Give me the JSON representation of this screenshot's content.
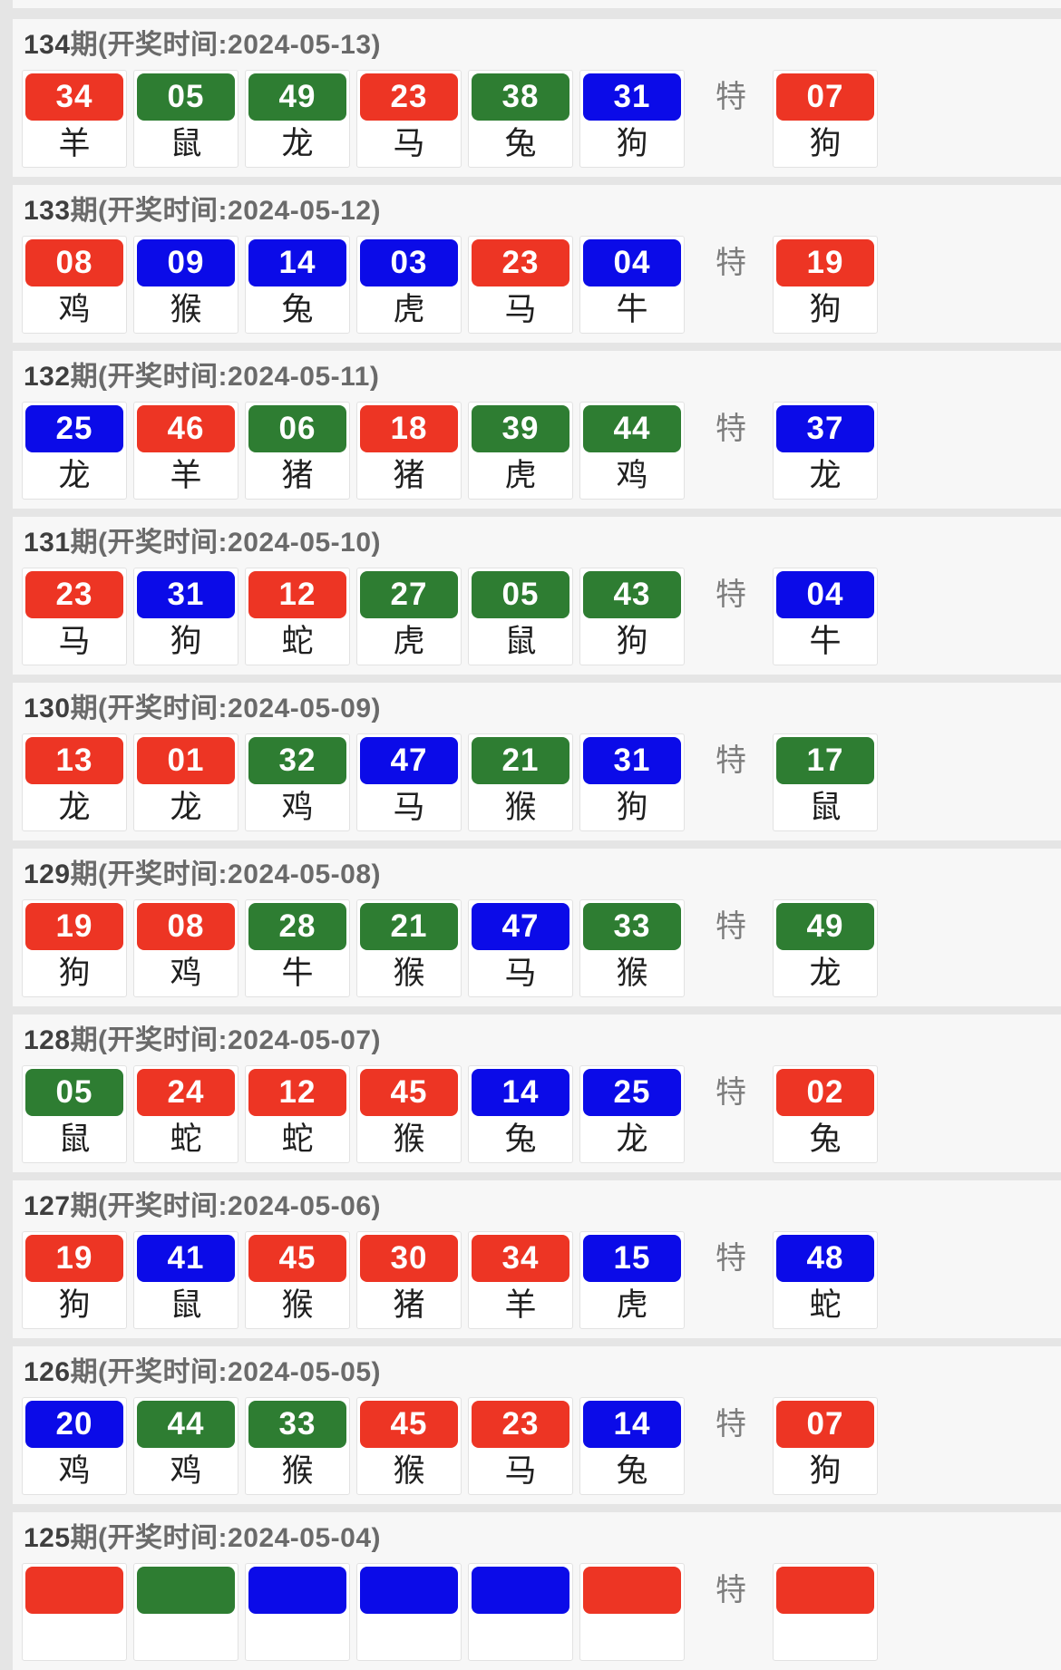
{
  "colors": {
    "red": "#ed3524",
    "green": "#2e7d32",
    "blue": "#0b0be8"
  },
  "special_label": "特",
  "periods": [
    {
      "period_num": "134",
      "title_rest": "期(开奖时间:2024-05-13)",
      "numbers": [
        {
          "num": "34",
          "color": "red",
          "zodiac": "羊"
        },
        {
          "num": "05",
          "color": "green",
          "zodiac": "鼠"
        },
        {
          "num": "49",
          "color": "green",
          "zodiac": "龙"
        },
        {
          "num": "23",
          "color": "red",
          "zodiac": "马"
        },
        {
          "num": "38",
          "color": "green",
          "zodiac": "兔"
        },
        {
          "num": "31",
          "color": "blue",
          "zodiac": "狗"
        }
      ],
      "special": {
        "num": "07",
        "color": "red",
        "zodiac": "狗"
      }
    },
    {
      "period_num": "133",
      "title_rest": "期(开奖时间:2024-05-12)",
      "numbers": [
        {
          "num": "08",
          "color": "red",
          "zodiac": "鸡"
        },
        {
          "num": "09",
          "color": "blue",
          "zodiac": "猴"
        },
        {
          "num": "14",
          "color": "blue",
          "zodiac": "兔"
        },
        {
          "num": "03",
          "color": "blue",
          "zodiac": "虎"
        },
        {
          "num": "23",
          "color": "red",
          "zodiac": "马"
        },
        {
          "num": "04",
          "color": "blue",
          "zodiac": "牛"
        }
      ],
      "special": {
        "num": "19",
        "color": "red",
        "zodiac": "狗"
      }
    },
    {
      "period_num": "132",
      "title_rest": "期(开奖时间:2024-05-11)",
      "numbers": [
        {
          "num": "25",
          "color": "blue",
          "zodiac": "龙"
        },
        {
          "num": "46",
          "color": "red",
          "zodiac": "羊"
        },
        {
          "num": "06",
          "color": "green",
          "zodiac": "猪"
        },
        {
          "num": "18",
          "color": "red",
          "zodiac": "猪"
        },
        {
          "num": "39",
          "color": "green",
          "zodiac": "虎"
        },
        {
          "num": "44",
          "color": "green",
          "zodiac": "鸡"
        }
      ],
      "special": {
        "num": "37",
        "color": "blue",
        "zodiac": "龙"
      }
    },
    {
      "period_num": "131",
      "title_rest": "期(开奖时间:2024-05-10)",
      "numbers": [
        {
          "num": "23",
          "color": "red",
          "zodiac": "马"
        },
        {
          "num": "31",
          "color": "blue",
          "zodiac": "狗"
        },
        {
          "num": "12",
          "color": "red",
          "zodiac": "蛇"
        },
        {
          "num": "27",
          "color": "green",
          "zodiac": "虎"
        },
        {
          "num": "05",
          "color": "green",
          "zodiac": "鼠"
        },
        {
          "num": "43",
          "color": "green",
          "zodiac": "狗"
        }
      ],
      "special": {
        "num": "04",
        "color": "blue",
        "zodiac": "牛"
      }
    },
    {
      "period_num": "130",
      "title_rest": "期(开奖时间:2024-05-09)",
      "numbers": [
        {
          "num": "13",
          "color": "red",
          "zodiac": "龙"
        },
        {
          "num": "01",
          "color": "red",
          "zodiac": "龙"
        },
        {
          "num": "32",
          "color": "green",
          "zodiac": "鸡"
        },
        {
          "num": "47",
          "color": "blue",
          "zodiac": "马"
        },
        {
          "num": "21",
          "color": "green",
          "zodiac": "猴"
        },
        {
          "num": "31",
          "color": "blue",
          "zodiac": "狗"
        }
      ],
      "special": {
        "num": "17",
        "color": "green",
        "zodiac": "鼠"
      }
    },
    {
      "period_num": "129",
      "title_rest": "期(开奖时间:2024-05-08)",
      "numbers": [
        {
          "num": "19",
          "color": "red",
          "zodiac": "狗"
        },
        {
          "num": "08",
          "color": "red",
          "zodiac": "鸡"
        },
        {
          "num": "28",
          "color": "green",
          "zodiac": "牛"
        },
        {
          "num": "21",
          "color": "green",
          "zodiac": "猴"
        },
        {
          "num": "47",
          "color": "blue",
          "zodiac": "马"
        },
        {
          "num": "33",
          "color": "green",
          "zodiac": "猴"
        }
      ],
      "special": {
        "num": "49",
        "color": "green",
        "zodiac": "龙"
      }
    },
    {
      "period_num": "128",
      "title_rest": "期(开奖时间:2024-05-07)",
      "numbers": [
        {
          "num": "05",
          "color": "green",
          "zodiac": "鼠"
        },
        {
          "num": "24",
          "color": "red",
          "zodiac": "蛇"
        },
        {
          "num": "12",
          "color": "red",
          "zodiac": "蛇"
        },
        {
          "num": "45",
          "color": "red",
          "zodiac": "猴"
        },
        {
          "num": "14",
          "color": "blue",
          "zodiac": "兔"
        },
        {
          "num": "25",
          "color": "blue",
          "zodiac": "龙"
        }
      ],
      "special": {
        "num": "02",
        "color": "red",
        "zodiac": "兔"
      }
    },
    {
      "period_num": "127",
      "title_rest": "期(开奖时间:2024-05-06)",
      "numbers": [
        {
          "num": "19",
          "color": "red",
          "zodiac": "狗"
        },
        {
          "num": "41",
          "color": "blue",
          "zodiac": "鼠"
        },
        {
          "num": "45",
          "color": "red",
          "zodiac": "猴"
        },
        {
          "num": "30",
          "color": "red",
          "zodiac": "猪"
        },
        {
          "num": "34",
          "color": "red",
          "zodiac": "羊"
        },
        {
          "num": "15",
          "color": "blue",
          "zodiac": "虎"
        }
      ],
      "special": {
        "num": "48",
        "color": "blue",
        "zodiac": "蛇"
      }
    },
    {
      "period_num": "126",
      "title_rest": "期(开奖时间:2024-05-05)",
      "numbers": [
        {
          "num": "20",
          "color": "blue",
          "zodiac": "鸡"
        },
        {
          "num": "44",
          "color": "green",
          "zodiac": "鸡"
        },
        {
          "num": "33",
          "color": "green",
          "zodiac": "猴"
        },
        {
          "num": "45",
          "color": "red",
          "zodiac": "猴"
        },
        {
          "num": "23",
          "color": "red",
          "zodiac": "马"
        },
        {
          "num": "14",
          "color": "blue",
          "zodiac": "兔"
        }
      ],
      "special": {
        "num": "07",
        "color": "red",
        "zodiac": "狗"
      }
    },
    {
      "period_num": "125",
      "title_rest": "期(开奖时间:2024-05-04)",
      "numbers": [
        {
          "num": "",
          "color": "red",
          "zodiac": ""
        },
        {
          "num": "",
          "color": "green",
          "zodiac": ""
        },
        {
          "num": "",
          "color": "blue",
          "zodiac": ""
        },
        {
          "num": "",
          "color": "blue",
          "zodiac": ""
        },
        {
          "num": "",
          "color": "blue",
          "zodiac": ""
        },
        {
          "num": "",
          "color": "red",
          "zodiac": ""
        }
      ],
      "special": {
        "num": "",
        "color": "red",
        "zodiac": ""
      }
    }
  ]
}
